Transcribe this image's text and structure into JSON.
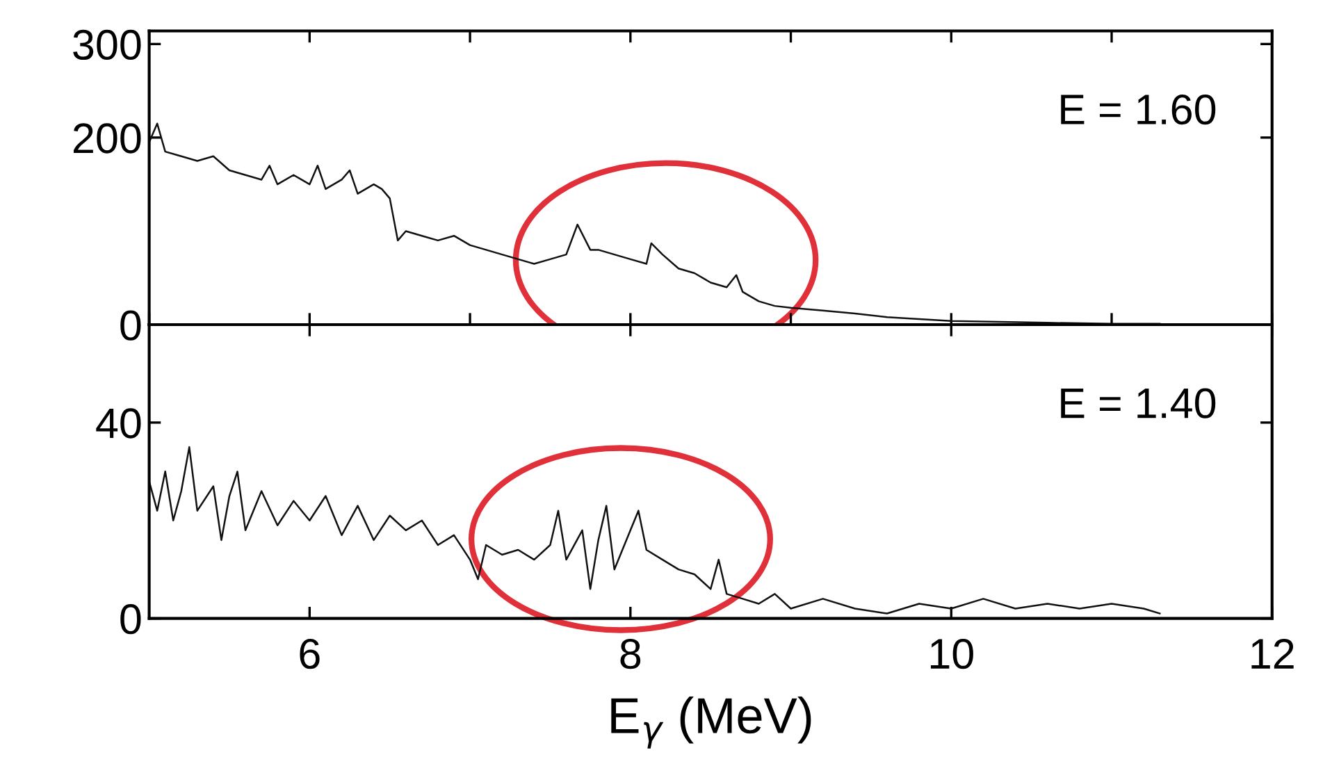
{
  "chart_data": [
    {
      "type": "line",
      "annotations": [
        "E = 1.60"
      ],
      "tick_labels": "y",
      "grid": false,
      "legend": false,
      "xlim": [
        5,
        12
      ],
      "ylim": [
        0,
        314
      ],
      "yticks": [
        0,
        200,
        300
      ],
      "x": [
        5.0,
        5.05,
        5.1,
        5.2,
        5.3,
        5.4,
        5.5,
        5.6,
        5.7,
        5.75,
        5.8,
        5.9,
        6.0,
        6.05,
        6.1,
        6.2,
        6.25,
        6.3,
        6.4,
        6.45,
        6.5,
        6.55,
        6.6,
        6.7,
        6.8,
        6.9,
        7.0,
        7.1,
        7.2,
        7.3,
        7.4,
        7.5,
        7.6,
        7.67,
        7.75,
        7.8,
        7.9,
        8.0,
        8.1,
        8.13,
        8.2,
        8.3,
        8.4,
        8.5,
        8.6,
        8.66,
        8.7,
        8.8,
        8.9,
        9.0,
        9.2,
        9.4,
        9.6,
        9.8,
        10.0,
        10.3,
        10.6,
        11.0,
        11.3
      ],
      "series": [
        {
          "color": "#111111",
          "values": [
            195,
            215,
            185,
            180,
            175,
            180,
            165,
            160,
            155,
            170,
            150,
            160,
            150,
            170,
            145,
            155,
            165,
            140,
            150,
            145,
            135,
            90,
            100,
            95,
            90,
            95,
            85,
            80,
            75,
            70,
            65,
            70,
            75,
            107,
            80,
            80,
            75,
            70,
            65,
            87,
            75,
            60,
            55,
            45,
            40,
            53,
            35,
            25,
            20,
            18,
            15,
            12,
            8,
            6,
            4,
            3,
            2,
            1,
            1
          ]
        }
      ]
    },
    {
      "type": "line",
      "annotations": [
        "E = 1.40"
      ],
      "xlabel": "E$_{γ}$ (MeV)",
      "grid": false,
      "legend": false,
      "xlim": [
        5,
        12
      ],
      "ylim": [
        0,
        60
      ],
      "xticks": [
        6,
        8,
        10,
        12
      ],
      "yticks": [
        0,
        40
      ],
      "x": [
        5.0,
        5.05,
        5.1,
        5.15,
        5.2,
        5.25,
        5.3,
        5.4,
        5.45,
        5.5,
        5.55,
        5.6,
        5.7,
        5.8,
        5.9,
        6.0,
        6.1,
        6.2,
        6.3,
        6.4,
        6.5,
        6.6,
        6.7,
        6.8,
        6.9,
        7.0,
        7.05,
        7.1,
        7.2,
        7.3,
        7.4,
        7.5,
        7.55,
        7.6,
        7.7,
        7.75,
        7.8,
        7.85,
        7.9,
        8.0,
        8.05,
        8.1,
        8.2,
        8.3,
        8.4,
        8.5,
        8.55,
        8.6,
        8.7,
        8.8,
        8.9,
        9.0,
        9.2,
        9.4,
        9.6,
        9.8,
        10.0,
        10.2,
        10.4,
        10.6,
        10.8,
        11.0,
        11.2,
        11.3
      ],
      "series": [
        {
          "color": "#111111",
          "values": [
            28,
            22,
            30,
            20,
            26,
            35,
            22,
            27,
            16,
            25,
            30,
            18,
            26,
            19,
            24,
            20,
            25,
            17,
            23,
            16,
            21,
            18,
            20,
            15,
            17,
            12,
            8,
            15,
            13,
            14,
            12,
            15,
            22,
            12,
            18,
            6,
            16,
            23,
            10,
            18,
            22,
            14,
            12,
            10,
            9,
            6,
            12,
            5,
            4,
            3,
            5,
            2,
            4,
            2,
            1,
            3,
            2,
            4,
            2,
            3,
            2,
            3,
            2,
            1
          ]
        }
      ]
    }
  ]
}
